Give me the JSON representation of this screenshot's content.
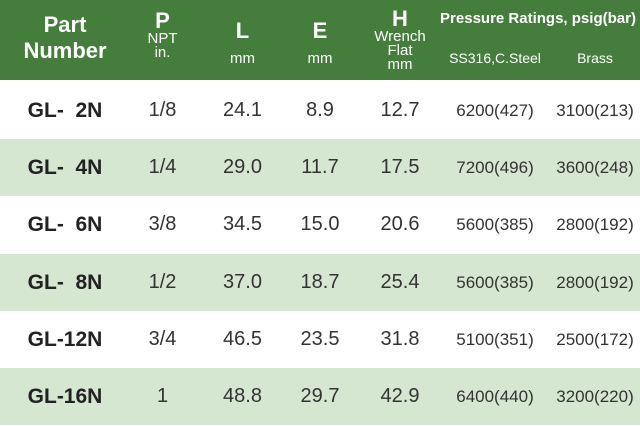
{
  "header": {
    "part": "Part",
    "number": "Number",
    "p_letter": "P",
    "p_unit1": "NPT",
    "p_unit2": "in.",
    "l_letter": "L",
    "l_unit": "mm",
    "e_letter": "E",
    "e_unit": "mm",
    "h_letter": "H",
    "h_sub1": "Wrench",
    "h_sub2": "Flat",
    "h_sub3": "mm",
    "pressure_title": "Pressure Ratings, psig(bar)",
    "pressure_col1": "SS316,C.Steel",
    "pressure_col2": "Brass"
  },
  "colors": {
    "header_bg": "#457e3c",
    "row_shade": "#d5e6d1"
  },
  "rows": [
    {
      "part": "GL-  2N",
      "p": "1/8",
      "l": "24.1",
      "e": "8.9",
      "h": "12.7",
      "ss": "6200(427)",
      "brass": "3100(213)"
    },
    {
      "part": "GL-  4N",
      "p": "1/4",
      "l": "29.0",
      "e": "11.7",
      "h": "17.5",
      "ss": "7200(496)",
      "brass": "3600(248)"
    },
    {
      "part": "GL-  6N",
      "p": "3/8",
      "l": "34.5",
      "e": "15.0",
      "h": "20.6",
      "ss": "5600(385)",
      "brass": "2800(192)"
    },
    {
      "part": "GL-  8N",
      "p": "1/2",
      "l": "37.0",
      "e": "18.7",
      "h": "25.4",
      "ss": "5600(385)",
      "brass": "2800(192)"
    },
    {
      "part": "GL-12N",
      "p": "3/4",
      "l": "46.5",
      "e": "23.5",
      "h": "31.8",
      "ss": "5100(351)",
      "brass": "2500(172)"
    },
    {
      "part": "GL-16N",
      "p": "1",
      "l": "48.8",
      "e": "29.7",
      "h": "42.9",
      "ss": "6400(440)",
      "brass": "3200(220)"
    }
  ]
}
